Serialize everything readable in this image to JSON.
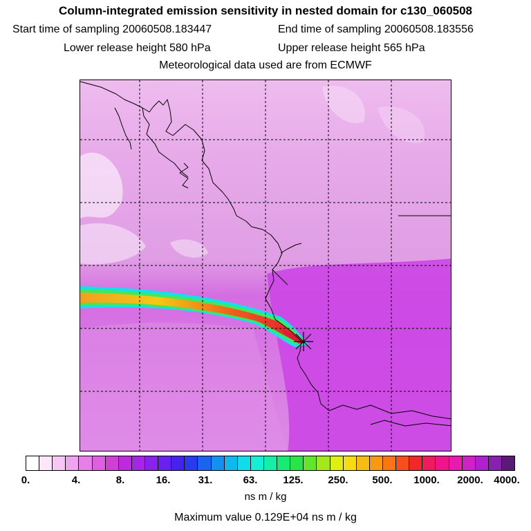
{
  "header": {
    "title": "Column-integrated emission sensitivity in nested domain for c130_060508",
    "start_time": "Start time of sampling 20060508.183447",
    "end_time": "End time of sampling 20060508.183556",
    "lower_height": "Lower release height  580 hPa",
    "upper_height": "Upper release height  565 hPa",
    "met_source": "Meteorological data used are from ECMWF"
  },
  "colorbar": {
    "tick_labels": [
      "0.",
      "4.",
      "8.",
      "16.",
      "31.",
      "63.",
      "125.",
      "250.",
      "500.",
      "1000.",
      "2000.",
      "4000."
    ],
    "colors": [
      "#ffffff",
      "#fbe6fb",
      "#f6c8f6",
      "#f0a4f0",
      "#e87ee8",
      "#e05ee0",
      "#d23ed6",
      "#bf2ae0",
      "#a526e6",
      "#8a22ee",
      "#6a20f0",
      "#4622ee",
      "#2a3af0",
      "#1a64f0",
      "#1490f0",
      "#10b8f0",
      "#10dcec",
      "#14f0d6",
      "#14f0a8",
      "#14ec74",
      "#28e648",
      "#62e62a",
      "#a4e81c",
      "#e0ee14",
      "#f8dc10",
      "#f8bc10",
      "#f89a10",
      "#f87614",
      "#f84e1c",
      "#f02828",
      "#f01a5c",
      "#f0148a",
      "#e81ab0",
      "#d020c8",
      "#b020d0",
      "#8820b0",
      "#5c1a78"
    ]
  },
  "units": "ns m / kg",
  "max_value": "Maximum value  0.129E+04 ns m / kg"
}
